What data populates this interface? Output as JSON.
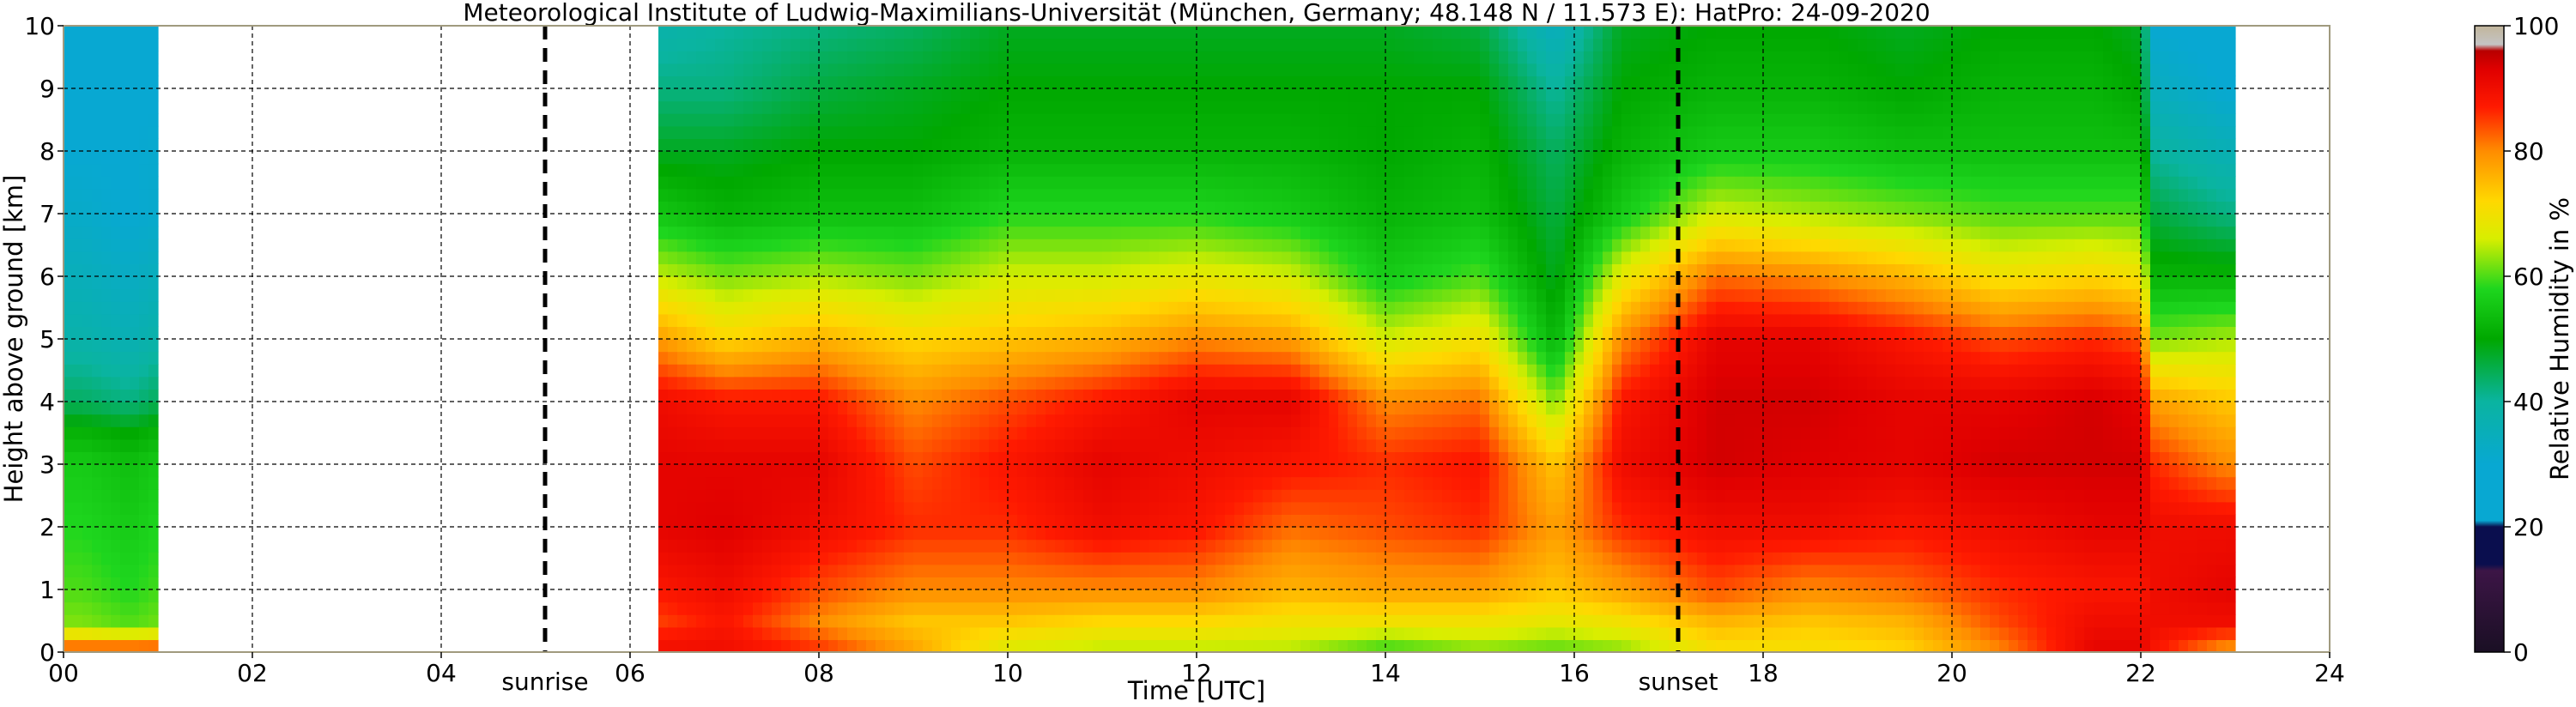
{
  "chart_data": {
    "type": "heatmap",
    "title": "Meteorological Institute of Ludwig-Maximilians-Universität (München, Germany; 48.148 N / 11.573 E):    HatPro: 24-09-2020",
    "xlabel": "Time [UTC]",
    "ylabel": "Height above ground [km]",
    "xlim": [
      0,
      24
    ],
    "ylim": [
      0,
      10
    ],
    "x_ticks": [
      "00",
      "02",
      "04",
      "06",
      "08",
      "10",
      "12",
      "14",
      "16",
      "18",
      "20",
      "22",
      "24"
    ],
    "y_ticks": [
      "0",
      "1",
      "2",
      "3",
      "4",
      "5",
      "6",
      "7",
      "8",
      "9",
      "10"
    ],
    "grid": true,
    "events": [
      {
        "label": "sunrise",
        "time": 5.1
      },
      {
        "label": "sunset",
        "time": 17.1
      }
    ],
    "data_segments": [
      [
        0,
        1.0
      ],
      [
        6.3,
        23.0
      ]
    ],
    "colorbar": {
      "label": "Relative Humidity in %",
      "range": [
        0,
        100
      ],
      "ticks": [
        "0",
        "20",
        "40",
        "60",
        "80",
        "100"
      ],
      "stops": [
        {
          "v": 0,
          "c": "#1a0f24"
        },
        {
          "v": 13,
          "c": "#3c1546"
        },
        {
          "v": 14,
          "c": "#0a0e4e"
        },
        {
          "v": 20,
          "c": "#0a0e4e"
        },
        {
          "v": 21,
          "c": "#08a8d2"
        },
        {
          "v": 30,
          "c": "#08a8d2"
        },
        {
          "v": 40,
          "c": "#0ab4a0"
        },
        {
          "v": 50,
          "c": "#00a800"
        },
        {
          "v": 58,
          "c": "#1ed61e"
        },
        {
          "v": 66,
          "c": "#d8ee00"
        },
        {
          "v": 72,
          "c": "#ffd800"
        },
        {
          "v": 80,
          "c": "#ff8c00"
        },
        {
          "v": 87,
          "c": "#ff1a00"
        },
        {
          "v": 93,
          "c": "#e00000"
        },
        {
          "v": 96,
          "c": "#b80000"
        },
        {
          "v": 97,
          "c": "#c4c4c4"
        },
        {
          "v": 100,
          "c": "#c2b59b"
        }
      ]
    },
    "humidity_profiles": [
      {
        "time": 0.2,
        "heights_km": [
          0,
          0.2,
          0.5,
          1,
          2,
          3,
          3.5,
          4,
          5,
          6,
          7,
          8,
          10
        ],
        "rh": [
          90,
          72,
          62,
          60,
          58,
          56,
          52,
          44,
          38,
          35,
          32,
          30,
          28
        ]
      },
      {
        "time": 0.7,
        "heights_km": [
          0,
          0.2,
          0.5,
          1,
          2,
          3,
          3.5,
          4,
          5,
          6,
          7,
          8,
          10
        ],
        "rh": [
          92,
          70,
          60,
          58,
          56,
          54,
          50,
          42,
          36,
          33,
          30,
          30,
          28
        ]
      },
      {
        "time": 6.35,
        "heights_km": [
          0,
          0.5,
          1,
          2,
          3,
          4,
          5,
          6,
          7,
          8,
          9,
          10
        ],
        "rh": [
          90,
          85,
          88,
          92,
          92,
          90,
          78,
          65,
          55,
          48,
          42,
          38
        ]
      },
      {
        "time": 7.0,
        "heights_km": [
          0,
          0.5,
          1,
          2,
          3,
          4,
          5,
          6,
          7,
          8,
          9,
          10
        ],
        "rh": [
          90,
          88,
          90,
          93,
          92,
          88,
          72,
          62,
          52,
          48,
          42,
          40
        ]
      },
      {
        "time": 8.0,
        "heights_km": [
          0,
          0.5,
          1,
          2,
          3,
          4,
          5,
          6,
          7,
          8,
          9,
          10
        ],
        "rh": [
          86,
          80,
          84,
          90,
          92,
          88,
          76,
          64,
          54,
          50,
          46,
          42
        ]
      },
      {
        "time": 9.0,
        "heights_km": [
          0,
          0.5,
          1,
          2,
          3,
          4,
          5,
          6,
          7,
          8,
          9,
          10
        ],
        "rh": [
          78,
          74,
          80,
          86,
          84,
          80,
          72,
          62,
          54,
          50,
          48,
          44
        ]
      },
      {
        "time": 10.0,
        "heights_km": [
          0,
          0.5,
          1,
          2,
          3,
          4,
          5,
          6,
          7,
          8,
          9,
          10
        ],
        "rh": [
          66,
          74,
          80,
          86,
          88,
          84,
          74,
          66,
          58,
          52,
          50,
          48
        ]
      },
      {
        "time": 11.0,
        "heights_km": [
          0,
          0.5,
          1,
          2,
          3,
          4,
          5,
          6,
          7,
          8,
          9,
          10
        ],
        "rh": [
          64,
          72,
          80,
          90,
          92,
          88,
          76,
          66,
          58,
          52,
          50,
          48
        ]
      },
      {
        "time": 12.0,
        "heights_km": [
          0,
          0.5,
          1,
          2,
          3,
          4,
          5,
          6,
          7,
          8,
          9,
          10
        ],
        "rh": [
          64,
          72,
          80,
          88,
          90,
          92,
          80,
          68,
          58,
          52,
          50,
          48
        ]
      },
      {
        "time": 13.0,
        "heights_km": [
          0,
          0.5,
          1,
          2,
          3,
          4,
          5,
          6,
          7,
          8,
          9,
          10
        ],
        "rh": [
          64,
          70,
          76,
          82,
          88,
          92,
          78,
          66,
          56,
          52,
          50,
          48
        ]
      },
      {
        "time": 14.0,
        "heights_km": [
          0,
          0.5,
          1,
          2,
          3,
          4,
          5,
          6,
          7,
          8,
          9,
          10
        ],
        "rh": [
          58,
          70,
          78,
          84,
          86,
          80,
          66,
          56,
          52,
          50,
          50,
          48
        ]
      },
      {
        "time": 15.0,
        "heights_km": [
          0,
          0.5,
          1,
          2,
          3,
          4,
          5,
          6,
          7,
          8,
          9,
          10
        ],
        "rh": [
          62,
          70,
          78,
          86,
          88,
          82,
          70,
          60,
          54,
          52,
          50,
          46
        ]
      },
      {
        "time": 15.8,
        "heights_km": [
          0,
          0.5,
          1,
          2,
          3,
          4,
          5,
          6,
          7,
          8,
          9,
          10
        ],
        "rh": [
          60,
          68,
          74,
          78,
          74,
          62,
          52,
          48,
          46,
          44,
          40,
          34
        ]
      },
      {
        "time": 16.5,
        "heights_km": [
          0,
          0.5,
          1,
          2,
          3,
          4,
          5,
          6,
          7,
          8,
          9,
          10
        ],
        "rh": [
          62,
          70,
          78,
          86,
          90,
          88,
          80,
          68,
          56,
          52,
          50,
          48
        ]
      },
      {
        "time": 17.5,
        "heights_km": [
          0,
          0.5,
          1,
          2,
          3,
          4,
          5,
          6,
          7,
          8,
          9,
          10
        ],
        "rh": [
          70,
          76,
          84,
          90,
          94,
          94,
          92,
          82,
          66,
          56,
          52,
          50
        ]
      },
      {
        "time": 18.5,
        "heights_km": [
          0,
          0.5,
          1,
          2,
          3,
          4,
          5,
          6,
          7,
          8,
          9,
          10
        ],
        "rh": [
          70,
          74,
          80,
          90,
          93,
          94,
          92,
          80,
          64,
          56,
          52,
          50
        ]
      },
      {
        "time": 19.5,
        "heights_km": [
          0,
          0.5,
          1,
          2,
          3,
          4,
          5,
          6,
          7,
          8,
          9,
          10
        ],
        "rh": [
          72,
          76,
          82,
          88,
          92,
          92,
          88,
          76,
          62,
          54,
          50,
          48
        ]
      },
      {
        "time": 20.5,
        "heights_km": [
          0,
          0.5,
          1,
          2,
          3,
          4,
          5,
          6,
          7,
          8,
          9,
          10
        ],
        "rh": [
          80,
          84,
          86,
          90,
          94,
          92,
          84,
          70,
          60,
          54,
          52,
          50
        ]
      },
      {
        "time": 21.5,
        "heights_km": [
          0,
          0.5,
          1,
          2,
          3,
          4,
          5,
          6,
          7,
          8,
          9,
          10
        ],
        "rh": [
          92,
          90,
          88,
          92,
          94,
          94,
          86,
          72,
          60,
          54,
          52,
          50
        ]
      },
      {
        "time": 22.0,
        "heights_km": [
          0,
          0.5,
          1,
          2,
          3,
          4,
          5,
          6,
          7,
          8,
          9,
          10
        ],
        "rh": [
          92,
          90,
          88,
          92,
          94,
          92,
          84,
          70,
          60,
          54,
          50,
          48
        ]
      },
      {
        "time": 22.15,
        "heights_km": [
          0,
          0.5,
          1,
          2,
          3,
          4,
          5,
          6,
          7,
          8,
          9,
          10
        ],
        "rh": [
          88,
          90,
          90,
          90,
          86,
          78,
          62,
          52,
          46,
          40,
          34,
          30
        ]
      },
      {
        "time": 22.9,
        "heights_km": [
          0,
          0.5,
          1,
          2,
          3,
          4,
          5,
          6,
          7,
          8,
          9,
          10
        ],
        "rh": [
          78,
          90,
          92,
          90,
          80,
          74,
          64,
          52,
          42,
          36,
          30,
          28
        ]
      }
    ]
  }
}
